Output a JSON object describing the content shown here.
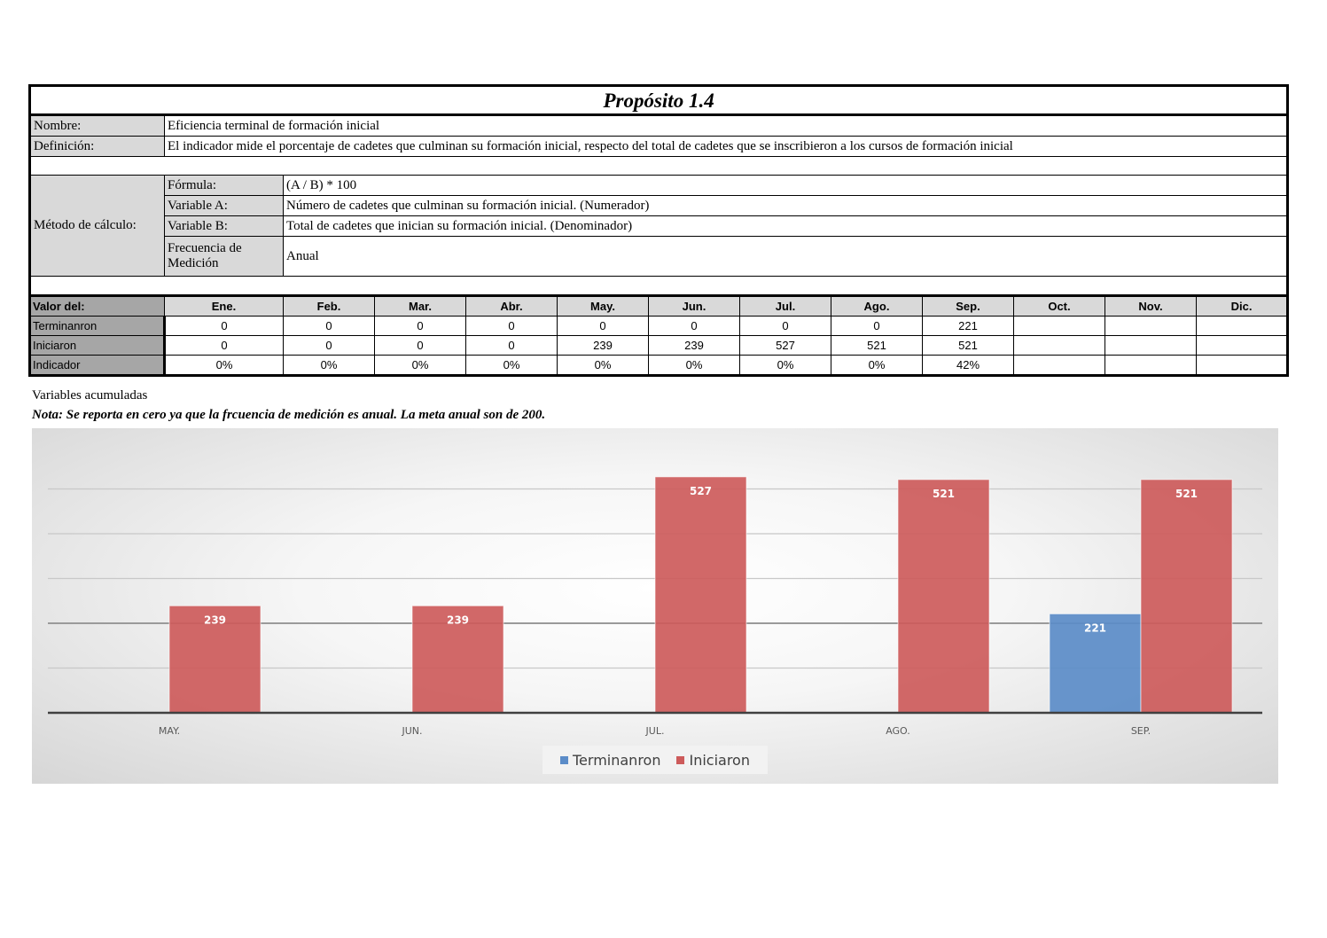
{
  "title": "Propósito 1.4",
  "nombre": {
    "label": "Nombre:",
    "value": "Eficiencia terminal de formación inicial"
  },
  "definicion": {
    "label": "Definición:",
    "value": "El indicador mide el porcentaje de cadetes que culminan su formación inicial, respecto del total de cadetes que se inscribieron a los cursos de formación inicial"
  },
  "metodo": {
    "label": "Método de cálculo:",
    "rows": [
      {
        "label": "Fórmula:",
        "value": "(A / B) * 100"
      },
      {
        "label": "Variable A:",
        "value": "Número de cadetes que culminan su formación inicial. (Numerador)"
      },
      {
        "label": "Variable B:",
        "value": "Total de cadetes que inician su formación inicial. (Denominador)"
      },
      {
        "label": "Frecuencia de Medición",
        "value": "Anual"
      }
    ]
  },
  "monthly": {
    "header_label": "Valor del:",
    "months": [
      "Ene.",
      "Feb.",
      "Mar.",
      "Abr.",
      "May.",
      "Jun.",
      "Jul.",
      "Ago.",
      "Sep.",
      "Oct.",
      "Nov.",
      "Dic."
    ],
    "rows": [
      {
        "label": "Terminanron",
        "values": [
          "0",
          "0",
          "0",
          "0",
          "0",
          "0",
          "0",
          "0",
          "221",
          "",
          "",
          ""
        ]
      },
      {
        "label": "Iniciaron",
        "values": [
          "0",
          "0",
          "0",
          "0",
          "239",
          "239",
          "527",
          "521",
          "521",
          "",
          "",
          ""
        ]
      },
      {
        "label": "Indicador",
        "values": [
          "0%",
          "0%",
          "0%",
          "0%",
          "0%",
          "0%",
          "0%",
          "0%",
          "42%",
          "",
          "",
          ""
        ]
      }
    ]
  },
  "notes": {
    "acumuladas": "Variables acumuladas",
    "nota": "Nota: Se reporta en cero ya que la frcuencia de medición es anual. La meta anual son de 200."
  },
  "chart_data": {
    "type": "bar",
    "categories": [
      "MAY.",
      "JUN.",
      "JUL.",
      "AGO.",
      "SEP."
    ],
    "series": [
      {
        "name": "Terminanron",
        "values": [
          0,
          0,
          0,
          0,
          221
        ],
        "color": "#5b8cc8"
      },
      {
        "name": "Iniciaron",
        "values": [
          239,
          239,
          527,
          521,
          521
        ],
        "color": "#cd5b5b"
      }
    ],
    "ylim": [
      0,
      600
    ],
    "grid": true,
    "legend": "bottom"
  }
}
